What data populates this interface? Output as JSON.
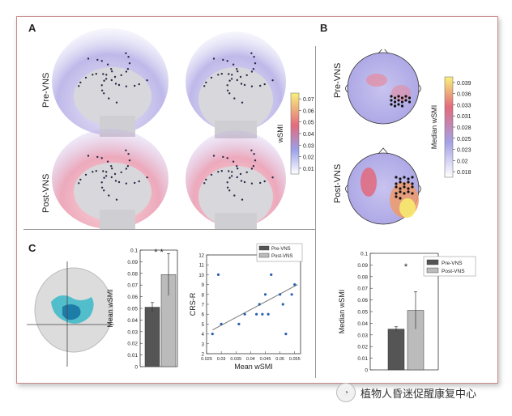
{
  "panels": {
    "a": {
      "letter": "A",
      "rows": [
        "Pre-VNS",
        "Post-VNS"
      ],
      "colorbar": {
        "label": "wSMI",
        "ticks": [
          "0.07",
          "0.06",
          "0.05",
          "0.04",
          "0.03",
          "0.02",
          "0.01"
        ]
      }
    },
    "b": {
      "letter": "B",
      "rows": [
        "Pre-VNS",
        "Post-VNS"
      ],
      "colorbar": {
        "label": "Median wSMI",
        "ticks": [
          "0.039",
          "0.036",
          "0.033",
          "0.031",
          "0.028",
          "0.025",
          "0.023",
          "0.02",
          "0.018"
        ]
      }
    },
    "c": {
      "letter": "C"
    }
  },
  "colors": {
    "pre": "#555555",
    "post": "#bbbbbb",
    "border": "#c98a8a",
    "scatter": "#2a5fb0"
  },
  "chart_data": [
    {
      "type": "bar",
      "categories": [
        "Pre-VNS",
        "Post-VNS"
      ],
      "values": [
        0.051,
        0.079
      ],
      "errors": [
        0.004,
        0.018
      ],
      "ylabel": "Mean wSMI",
      "ylim": [
        0,
        0.1
      ],
      "yticks": [
        "0",
        "0.01",
        "0.02",
        "0.03",
        "0.04",
        "0.05",
        "0.06",
        "0.07",
        "0.08",
        "0.09",
        "0.1"
      ],
      "annotation": "* *"
    },
    {
      "type": "scatter",
      "x": [
        0.027,
        0.029,
        0.03,
        0.036,
        0.038,
        0.042,
        0.043,
        0.044,
        0.045,
        0.046,
        0.047,
        0.05,
        0.051,
        0.052,
        0.054,
        0.055
      ],
      "y": [
        4,
        10,
        5,
        5,
        6,
        6,
        7,
        6,
        8,
        6,
        10,
        8,
        7,
        4,
        8,
        9
      ],
      "fit": [
        [
          0.027,
          4.4
        ],
        [
          0.056,
          9.0
        ]
      ],
      "xlabel": "Mean wSMI",
      "ylabel": "CRS-R",
      "xticks": [
        "0.025",
        "0.03",
        "0.035",
        "0.04",
        "0.045",
        "0.05",
        "0.055"
      ],
      "yticks": [
        "2",
        "3",
        "4",
        "5",
        "6",
        "7",
        "8",
        "9",
        "10",
        "11",
        "12"
      ],
      "xlim": [
        0.025,
        0.057
      ],
      "ylim": [
        2,
        12
      ],
      "legend": [
        "Pre-VNS",
        "Post-VNS"
      ],
      "legend_position": "top-right"
    },
    {
      "type": "bar",
      "categories": [
        "Pre-VNS",
        "Post-VNS"
      ],
      "values": [
        0.035,
        0.051
      ],
      "errors": [
        0.002,
        0.016
      ],
      "ylabel": "Median wSMI",
      "ylim": [
        0,
        0.1
      ],
      "yticks": [
        "0",
        "0.01",
        "0.02",
        "0.03",
        "0.04",
        "0.05",
        "0.06",
        "0.07",
        "0.08",
        "0.09",
        "0.1"
      ],
      "legend": [
        "Pre-VNS",
        "Post-VNS"
      ],
      "legend_position": "top-right",
      "annotation": "*"
    }
  ],
  "watermark": {
    "text": "植物人昏迷促醒康复中心",
    "logo_icon": "wechat-logo-icon"
  }
}
